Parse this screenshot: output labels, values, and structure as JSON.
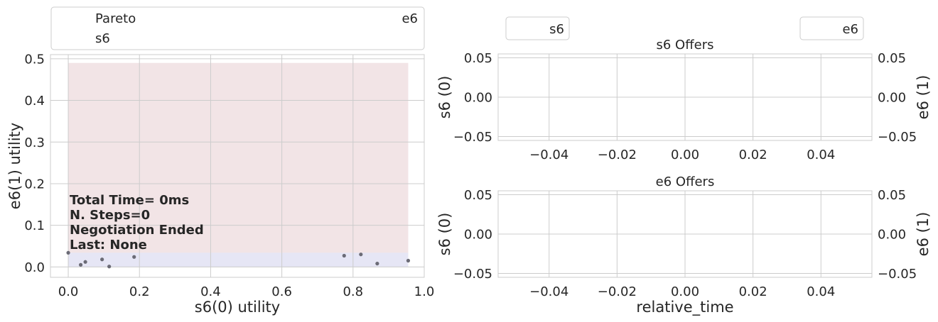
{
  "colors": {
    "grid": "#cccccc",
    "frame": "#cccccc",
    "text": "#262626",
    "points": "#6b6b76",
    "region_s6": "#f2e4e6",
    "region_e6": "#e6e6f5"
  },
  "chart_data": [
    {
      "type": "scatter",
      "panel": "utility-space",
      "xlabel": "s6(0) utility",
      "ylabel": "e6(1) utility",
      "xlim": [
        -0.05,
        1.0
      ],
      "ylim": [
        -0.025,
        0.51
      ],
      "xticks": [
        0.0,
        0.2,
        0.4,
        0.6,
        0.8,
        1.0
      ],
      "xtick_labels": [
        "0.0",
        "0.2",
        "0.4",
        "0.6",
        "0.8",
        "1.0"
      ],
      "yticks": [
        0.0,
        0.1,
        0.2,
        0.3,
        0.4,
        0.5
      ],
      "ytick_labels": [
        "0.0",
        "0.1",
        "0.2",
        "0.3",
        "0.4",
        "0.5"
      ],
      "grid": true,
      "legend": {
        "placement": "top, above plot",
        "entries": [
          "Pareto",
          "e6",
          "s6"
        ]
      },
      "regions": [
        {
          "name": "s6",
          "x": [
            0.0,
            0.955
          ],
          "y": [
            0.0,
            0.49
          ]
        },
        {
          "name": "e6",
          "x": [
            0.0,
            0.955
          ],
          "y": [
            0.0,
            0.034
          ]
        }
      ],
      "series": [
        {
          "points": [
            [
              0.0,
              0.034
            ],
            [
              0.035,
              0.005
            ],
            [
              0.048,
              0.012
            ],
            [
              0.095,
              0.018
            ],
            [
              0.115,
              0.001
            ],
            [
              0.185,
              0.024
            ],
            [
              0.775,
              0.027
            ],
            [
              0.822,
              0.03
            ],
            [
              0.868,
              0.008
            ],
            [
              0.955,
              0.015
            ]
          ]
        }
      ],
      "annotations": [
        "Total Time= 0ms",
        "N. Steps=0",
        "Negotiation Ended",
        "Last: None"
      ]
    },
    {
      "type": "line",
      "panel": "s6-offers",
      "title": "s6 Offers",
      "xlabel": "",
      "ylabel": "s6 (0)",
      "ylabel_right": "e6 (1)",
      "xlim": [
        -0.055,
        0.055
      ],
      "ylim": [
        -0.055,
        0.055
      ],
      "xticks": [
        -0.04,
        -0.02,
        0.0,
        0.02,
        0.04
      ],
      "xtick_labels": [
        "−0.04",
        "−0.02",
        "0.00",
        "0.02",
        "0.04"
      ],
      "yticks": [
        -0.05,
        0.0,
        0.05
      ],
      "ytick_labels": [
        "−0.05",
        "0.00",
        "0.05"
      ],
      "grid": true,
      "legend": {
        "left": "s6",
        "right": "e6"
      },
      "series": []
    },
    {
      "type": "line",
      "panel": "e6-offers",
      "title": "e6 Offers",
      "xlabel": "relative_time",
      "ylabel": "s6 (0)",
      "ylabel_right": "e6 (1)",
      "xlim": [
        -0.055,
        0.055
      ],
      "ylim": [
        -0.055,
        0.055
      ],
      "xticks": [
        -0.04,
        -0.02,
        0.0,
        0.02,
        0.04
      ],
      "xtick_labels": [
        "−0.04",
        "−0.02",
        "0.00",
        "0.02",
        "0.04"
      ],
      "yticks": [
        -0.05,
        0.0,
        0.05
      ],
      "ytick_labels": [
        "−0.05",
        "0.00",
        "0.05"
      ],
      "grid": true,
      "series": []
    }
  ]
}
